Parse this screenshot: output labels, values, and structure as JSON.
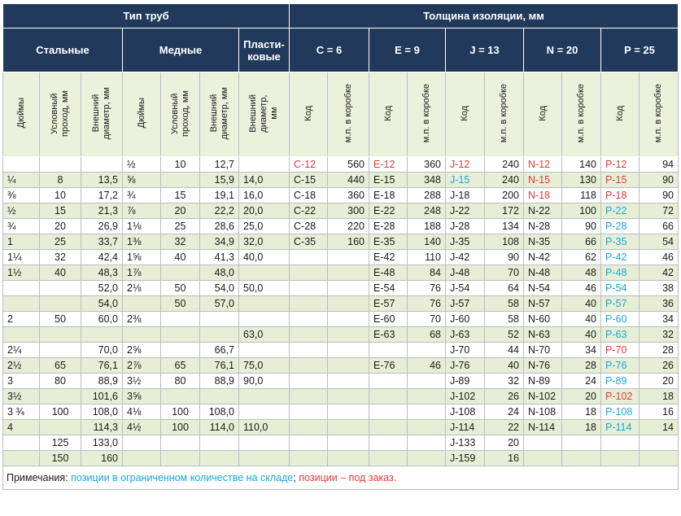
{
  "header": {
    "pipe_type": "Тип труб",
    "insulation_thickness": "Толщина изоляции, мм",
    "steel": "Стальные",
    "copper": "Медные",
    "plastic_line1": "Пласти-",
    "plastic_line2": "ковые",
    "groups": [
      "C = 6",
      "E = 9",
      "J = 13",
      "N = 20",
      "P = 25"
    ],
    "sub": {
      "inches": "Дюймы",
      "bore_line1": "Условный",
      "bore_line2": "проход, мм",
      "od_line1": "Внешний",
      "od_line2": "диаметр, мм",
      "plastic_od_line1": "Внешний",
      "plastic_od_line2": "диаметр,",
      "plastic_od_line3": "мм",
      "code": "Код",
      "per_box": "м.п. в коробке"
    }
  },
  "colors": {
    "header_bg": "#213a5c",
    "subheader_bg": "#eaf2dc",
    "stripe_bg": "#e6efd6",
    "in_stock_limited": "#1aa7d9",
    "on_order": "#e03a3a"
  },
  "rows": [
    {
      "s_in": "",
      "s_dn": "",
      "s_od": "",
      "c_in": "½",
      "c_dn": "10",
      "c_od": "12,7",
      "p_od": "",
      "C": "C-12",
      "C_q": "560",
      "C_c": "red",
      "E": "E-12",
      "E_q": "360",
      "E_c": "red",
      "J": "J-12",
      "J_q": "240",
      "J_c": "red",
      "N": "N-12",
      "N_q": "140",
      "N_c": "red",
      "P": "P-12",
      "P_q": "94",
      "P_c": "red"
    },
    {
      "s_in": "¼",
      "s_dn": "8",
      "s_od": "13,5",
      "c_in": "⅝",
      "c_dn": "",
      "c_od": "15,9",
      "p_od": "14,0",
      "C": "C-15",
      "C_q": "440",
      "C_c": "",
      "E": "E-15",
      "E_q": "348",
      "E_c": "",
      "J": "J-15",
      "J_q": "240",
      "J_c": "blue",
      "N": "N-15",
      "N_q": "130",
      "N_c": "red",
      "P": "P-15",
      "P_q": "90",
      "P_c": "red"
    },
    {
      "s_in": "⅜",
      "s_dn": "10",
      "s_od": "17,2",
      "c_in": "¾",
      "c_dn": "15",
      "c_od": "19,1",
      "p_od": "16,0",
      "C": "C-18",
      "C_q": "360",
      "C_c": "",
      "E": "E-18",
      "E_q": "288",
      "E_c": "",
      "J": "J-18",
      "J_q": "200",
      "J_c": "",
      "N": "N-18",
      "N_q": "118",
      "N_c": "red",
      "P": "P-18",
      "P_q": "90",
      "P_c": "red"
    },
    {
      "s_in": "½",
      "s_dn": "15",
      "s_od": "21,3",
      "c_in": "⅞",
      "c_dn": "20",
      "c_od": "22,2",
      "p_od": "20,0",
      "C": "C-22",
      "C_q": "300",
      "C_c": "",
      "E": "E-22",
      "E_q": "248",
      "E_c": "",
      "J": "J-22",
      "J_q": "172",
      "J_c": "",
      "N": "N-22",
      "N_q": "100",
      "N_c": "",
      "P": "P-22",
      "P_q": "72",
      "P_c": "blue"
    },
    {
      "s_in": "¾",
      "s_dn": "20",
      "s_od": "26,9",
      "c_in": "1⅛",
      "c_dn": "25",
      "c_od": "28,6",
      "p_od": "25,0",
      "C": "C-28",
      "C_q": "220",
      "C_c": "",
      "E": "E-28",
      "E_q": "188",
      "E_c": "",
      "J": "J-28",
      "J_q": "134",
      "J_c": "",
      "N": "N-28",
      "N_q": "90",
      "N_c": "",
      "P": "P-28",
      "P_q": "66",
      "P_c": "blue"
    },
    {
      "s_in": "1",
      "s_dn": "25",
      "s_od": "33,7",
      "c_in": "1⅜",
      "c_dn": "32",
      "c_od": "34,9",
      "p_od": "32,0",
      "C": "C-35",
      "C_q": "160",
      "C_c": "",
      "E": "E-35",
      "E_q": "140",
      "E_c": "",
      "J": "J-35",
      "J_q": "108",
      "J_c": "",
      "N": "N-35",
      "N_q": "66",
      "N_c": "",
      "P": "P-35",
      "P_q": "54",
      "P_c": "blue"
    },
    {
      "s_in": "1¼",
      "s_dn": "32",
      "s_od": "42,4",
      "c_in": "1⅝",
      "c_dn": "40",
      "c_od": "41,3",
      "p_od": "40,0",
      "C": "",
      "C_q": "",
      "C_c": "",
      "E": "E-42",
      "E_q": "110",
      "E_c": "",
      "J": "J-42",
      "J_q": "90",
      "J_c": "",
      "N": "N-42",
      "N_q": "62",
      "N_c": "",
      "P": "P-42",
      "P_q": "46",
      "P_c": "blue"
    },
    {
      "s_in": "1½",
      "s_dn": "40",
      "s_od": "48,3",
      "c_in": "1⅞",
      "c_dn": "",
      "c_od": "48,0",
      "p_od": "",
      "C": "",
      "C_q": "",
      "C_c": "",
      "E": "E-48",
      "E_q": "84",
      "E_c": "",
      "J": "J-48",
      "J_q": "70",
      "J_c": "",
      "N": "N-48",
      "N_q": "48",
      "N_c": "",
      "P": "P-48",
      "P_q": "42",
      "P_c": "blue"
    },
    {
      "s_in": "",
      "s_dn": "",
      "s_od": "52,0",
      "c_in": "2⅛",
      "c_dn": "50",
      "c_od": "54,0",
      "p_od": "50,0",
      "C": "",
      "C_q": "",
      "C_c": "",
      "E": "E-54",
      "E_q": "76",
      "E_c": "",
      "J": "J-54",
      "J_q": "64",
      "J_c": "",
      "N": "N-54",
      "N_q": "46",
      "N_c": "",
      "P": "P-54",
      "P_q": "38",
      "P_c": "blue"
    },
    {
      "s_in": "",
      "s_dn": "",
      "s_od": "54,0",
      "c_in": "",
      "c_dn": "50",
      "c_od": "57,0",
      "p_od": "",
      "C": "",
      "C_q": "",
      "C_c": "",
      "E": "E-57",
      "E_q": "76",
      "E_c": "",
      "J": "J-57",
      "J_q": "58",
      "J_c": "",
      "N": "N-57",
      "N_q": "40",
      "N_c": "",
      "P": "P-57",
      "P_q": "36",
      "P_c": "blue"
    },
    {
      "s_in": "2",
      "s_dn": "50",
      "s_od": "60,0",
      "c_in": "2⅜",
      "c_dn": "",
      "c_od": "",
      "p_od": "",
      "C": "",
      "C_q": "",
      "C_c": "",
      "E": "E-60",
      "E_q": "70",
      "E_c": "",
      "J": "J-60",
      "J_q": "58",
      "J_c": "",
      "N": "N-60",
      "N_q": "40",
      "N_c": "",
      "P": "P-60",
      "P_q": "34",
      "P_c": "blue"
    },
    {
      "s_in": "",
      "s_dn": "",
      "s_od": "",
      "c_in": "",
      "c_dn": "",
      "c_od": "",
      "p_od": "63,0",
      "C": "",
      "C_q": "",
      "C_c": "",
      "E": "E-63",
      "E_q": "68",
      "E_c": "",
      "J": "J-63",
      "J_q": "52",
      "J_c": "",
      "N": "N-63",
      "N_q": "40",
      "N_c": "",
      "P": "P-63",
      "P_q": "32",
      "P_c": "blue"
    },
    {
      "s_in": "2¼",
      "s_dn": "",
      "s_od": "70,0",
      "c_in": "2⅝",
      "c_dn": "",
      "c_od": "66,7",
      "p_od": "",
      "C": "",
      "C_q": "",
      "C_c": "",
      "E": "",
      "E_q": "",
      "E_c": "",
      "J": "J-70",
      "J_q": "44",
      "J_c": "",
      "N": "N-70",
      "N_q": "34",
      "N_c": "",
      "P": "P-70",
      "P_q": "28",
      "P_c": "red"
    },
    {
      "s_in": "2½",
      "s_dn": "65",
      "s_od": "76,1",
      "c_in": "2⅞",
      "c_dn": "65",
      "c_od": "76,1",
      "p_od": "75,0",
      "C": "",
      "C_q": "",
      "C_c": "",
      "E": "E-76",
      "E_q": "46",
      "E_c": "",
      "J": "J-76",
      "J_q": "40",
      "J_c": "",
      "N": "N-76",
      "N_q": "28",
      "N_c": "",
      "P": "P-76",
      "P_q": "26",
      "P_c": "blue"
    },
    {
      "s_in": "3",
      "s_dn": "80",
      "s_od": "88,9",
      "c_in": "3½",
      "c_dn": "80",
      "c_od": "88,9",
      "p_od": "90,0",
      "C": "",
      "C_q": "",
      "C_c": "",
      "E": "",
      "E_q": "",
      "E_c": "",
      "J": "J-89",
      "J_q": "32",
      "J_c": "",
      "N": "N-89",
      "N_q": "24",
      "N_c": "",
      "P": "P-89",
      "P_q": "20",
      "P_c": "blue"
    },
    {
      "s_in": "3½",
      "s_dn": "",
      "s_od": "101,6",
      "c_in": "3⅝",
      "c_dn": "",
      "c_od": "",
      "p_od": "",
      "C": "",
      "C_q": "",
      "C_c": "",
      "E": "",
      "E_q": "",
      "E_c": "",
      "J": "J-102",
      "J_q": "26",
      "J_c": "",
      "N": "N-102",
      "N_q": "20",
      "N_c": "",
      "P": "P-102",
      "P_q": "18",
      "P_c": "red"
    },
    {
      "s_in": "3 ¾",
      "s_dn": "100",
      "s_od": "108,0",
      "c_in": "4⅛",
      "c_dn": "100",
      "c_od": "108,0",
      "p_od": "",
      "C": "",
      "C_q": "",
      "C_c": "",
      "E": "",
      "E_q": "",
      "E_c": "",
      "J": "J-108",
      "J_q": "24",
      "J_c": "",
      "N": "N-108",
      "N_q": "18",
      "N_c": "",
      "P": "P-108",
      "P_q": "16",
      "P_c": "blue"
    },
    {
      "s_in": "4",
      "s_dn": "",
      "s_od": "114,3",
      "c_in": "4½",
      "c_dn": "100",
      "c_od": "114,0",
      "p_od": "110,0",
      "C": "",
      "C_q": "",
      "C_c": "",
      "E": "",
      "E_q": "",
      "E_c": "",
      "J": "J-114",
      "J_q": "22",
      "J_c": "",
      "N": "N-114",
      "N_q": "18",
      "N_c": "",
      "P": "P-114",
      "P_q": "14",
      "P_c": "blue"
    },
    {
      "s_in": "",
      "s_dn": "125",
      "s_od": "133,0",
      "c_in": "",
      "c_dn": "",
      "c_od": "",
      "p_od": "",
      "C": "",
      "C_q": "",
      "C_c": "",
      "E": "",
      "E_q": "",
      "E_c": "",
      "J": "J-133",
      "J_q": "20",
      "J_c": "",
      "N": "",
      "N_q": "",
      "N_c": "",
      "P": "",
      "P_q": "",
      "P_c": ""
    },
    {
      "s_in": "",
      "s_dn": "150",
      "s_od": "160",
      "c_in": "",
      "c_dn": "",
      "c_od": "",
      "p_od": "",
      "C": "",
      "C_q": "",
      "C_c": "",
      "E": "",
      "E_q": "",
      "E_c": "",
      "J": "J-159",
      "J_q": "16",
      "J_c": "",
      "N": "",
      "N_q": "",
      "N_c": "",
      "P": "",
      "P_q": "",
      "P_c": ""
    }
  ],
  "footer": {
    "label": "Примечания:",
    "blue_text": "позиции в ограниченном количестве на складе",
    "separator": ";",
    "red_text": "позиции – под заказ."
  }
}
